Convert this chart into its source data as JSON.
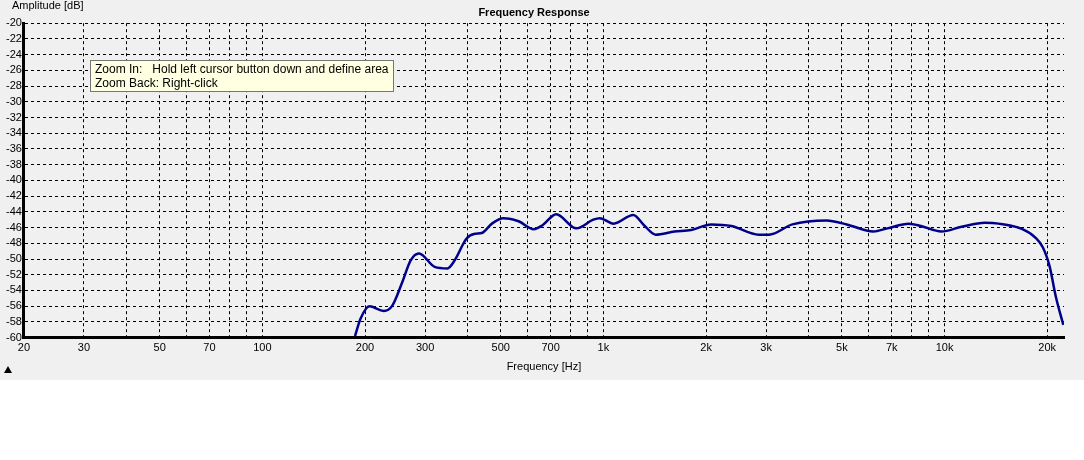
{
  "chart_data": {
    "type": "line",
    "title": "Frequency Response",
    "xlabel": "Frequency [Hz]",
    "ylabel": "Amplitude [dB]",
    "annotations": [
      "Zoom In:   Hold left cursor button down and define area\nZoom Back: Right-click"
    ],
    "log": "x",
    "grid": true,
    "marker": "none",
    "line_style": "solid",
    "xlim": [
      20,
      22400
    ],
    "ylim": [
      -60,
      -20
    ],
    "xticks": [
      20,
      30,
      {
        "value": 40,
        "label": null
      },
      50,
      {
        "value": 60,
        "label": null
      },
      70,
      {
        "value": 80,
        "label": null
      },
      {
        "value": 90,
        "label": null
      },
      100,
      200,
      300,
      {
        "value": 400,
        "label": null
      },
      500,
      {
        "value": 600,
        "label": null
      },
      700,
      {
        "value": 800,
        "label": null
      },
      {
        "value": 900,
        "label": null
      },
      {
        "value": 1000,
        "label": "1k"
      },
      {
        "value": 2000,
        "label": "2k"
      },
      {
        "value": 3000,
        "label": "3k"
      },
      {
        "value": 4000,
        "label": null
      },
      {
        "value": 5000,
        "label": "5k"
      },
      {
        "value": 6000,
        "label": null
      },
      {
        "value": 7000,
        "label": "7k"
      },
      {
        "value": 8000,
        "label": null
      },
      {
        "value": 9000,
        "label": null
      },
      {
        "value": 10000,
        "label": "10k"
      },
      {
        "value": 20000,
        "label": "20k"
      }
    ],
    "yticks": [
      -60,
      -58,
      -56,
      -54,
      -52,
      -50,
      -48,
      -46,
      -44,
      -42,
      -40,
      -38,
      -36,
      -34,
      -32,
      -30,
      -28,
      -26,
      -24,
      -22,
      -20
    ],
    "series": [
      {
        "color": "#00008b",
        "x": [
          187,
          194,
          206,
          227,
          240,
          257,
          272,
          288,
          320,
          349,
          366,
          397,
          420,
          440,
          471,
          509,
          564,
          625,
          663,
          727,
          833,
          934,
          976,
          1071,
          1223,
          1315,
          1422,
          1616,
          1808,
          2070,
          2373,
          2855,
          3058,
          3580,
          4508,
          5166,
          6186,
          6795,
          7861,
          8531,
          9790,
          11220,
          13130,
          14420,
          16920,
          18500,
          19410,
          20320,
          21200,
          22300
        ],
        "values": [
          -59.8,
          -57.6,
          -56.0,
          -56.6,
          -56.0,
          -53.0,
          -50.2,
          -49.3,
          -51.0,
          -51.2,
          -50.2,
          -47.4,
          -46.8,
          -46.7,
          -45.5,
          -44.8,
          -45.2,
          -46.2,
          -45.7,
          -44.3,
          -46.1,
          -45.0,
          -44.8,
          -45.5,
          -44.4,
          -45.7,
          -46.9,
          -46.5,
          -46.3,
          -45.6,
          -45.8,
          -46.9,
          -46.9,
          -45.6,
          -45.1,
          -45.6,
          -46.5,
          -46.1,
          -45.5,
          -45.8,
          -46.5,
          -45.9,
          -45.4,
          -45.5,
          -46.2,
          -47.3,
          -48.5,
          -50.9,
          -54.8,
          -58.4
        ]
      }
    ]
  }
}
